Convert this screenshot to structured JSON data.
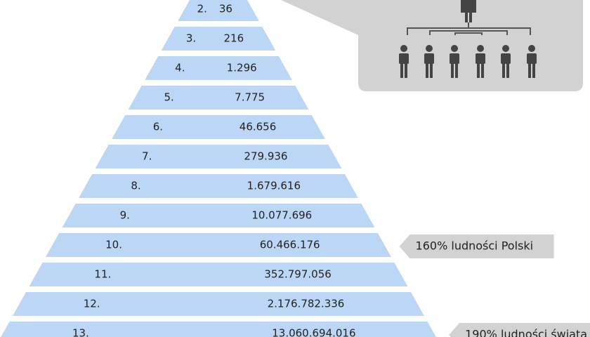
{
  "rows": [
    {
      "level": "2.",
      "count": "36"
    },
    {
      "level": "3.",
      "count": "216"
    },
    {
      "level": "4.",
      "count": "1.296"
    },
    {
      "level": "5.",
      "count": "7.775"
    },
    {
      "level": "6.",
      "count": "46.656"
    },
    {
      "level": "7.",
      "count": "279.936"
    },
    {
      "level": "8.",
      "count": "1.679.616"
    },
    {
      "level": "9.",
      "count": "10.077.696"
    },
    {
      "level": "10.",
      "count": "60.466.176"
    },
    {
      "level": "11.",
      "count": "352.797.056"
    },
    {
      "level": "12.",
      "count": "2.176.782.336"
    },
    {
      "level": "13.",
      "count": "13.060.694.016"
    }
  ],
  "callouts": [
    {
      "row": 8,
      "text": "160% ludności Polski"
    },
    {
      "row": 11,
      "text": "190% ludności świata"
    }
  ]
}
